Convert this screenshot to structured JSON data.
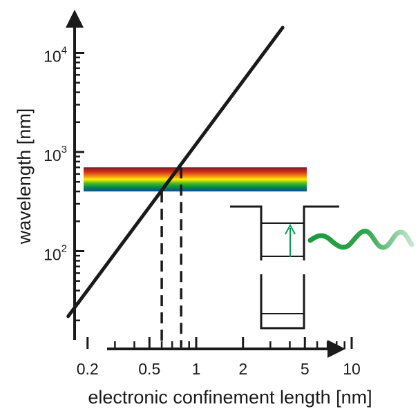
{
  "chart_data": {
    "type": "line",
    "xlabel": "electronic confinement length [nm]",
    "ylabel": "wavelength [nm]",
    "x_scale": "log",
    "y_scale": "log",
    "xlim": [
      0.13,
      10
    ],
    "ylim": [
      10,
      10000
    ],
    "x_ticks": [
      {
        "value": 0.2,
        "label": "0.2"
      },
      {
        "value": 0.5,
        "label": "0.5"
      },
      {
        "value": 1,
        "label": "1"
      },
      {
        "value": 2,
        "label": "2"
      },
      {
        "value": 5,
        "label": "5"
      },
      {
        "value": 10,
        "label": "10"
      }
    ],
    "y_ticks": [
      {
        "value": 100,
        "base": "10",
        "exp": "2"
      },
      {
        "value": 1000,
        "base": "10",
        "exp": "3"
      },
      {
        "value": 10000,
        "base": "10",
        "exp": "4"
      }
    ],
    "series": [
      {
        "x": [
          0.15,
          3.6
        ],
        "y": [
          22,
          18000
        ]
      }
    ],
    "visible_band": {
      "y_min": 400,
      "y_max": 700,
      "colors": [
        "#7a1a2a",
        "#cc2a18",
        "#f07818",
        "#fff000",
        "#48b828",
        "#008848",
        "#104b9a"
      ]
    },
    "reference_lines": [
      {
        "x": 0.6,
        "y": 400
      },
      {
        "x": 0.8,
        "y": 700
      }
    ],
    "grid": false,
    "legend": "none"
  },
  "inset": {
    "well_icon": "quantum-well-diagram",
    "photon_icon": "photon-wave",
    "transition_color": "#00a050",
    "wave_color": "#1a9a3a"
  }
}
